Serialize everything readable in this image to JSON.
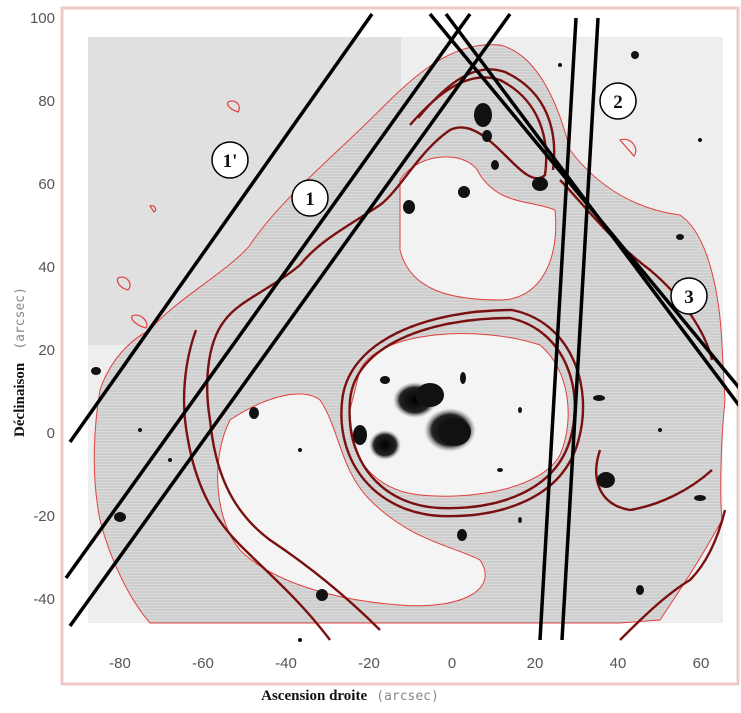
{
  "x_axis": {
    "title": "Ascension droite",
    "unit": "(arcsec)",
    "ticks": [
      "-80",
      "-60",
      "-40",
      "-20",
      "0",
      "20",
      "40",
      "60"
    ]
  },
  "y_axis": {
    "title": "Déclinaison",
    "unit": "(arcsec)",
    "ticks": [
      "100",
      "80",
      "60",
      "40",
      "20",
      "0",
      "-20",
      "-40"
    ]
  },
  "slits": [
    {
      "label": "1'"
    },
    {
      "label": "1"
    },
    {
      "label": "2"
    },
    {
      "label": "3"
    }
  ],
  "colors": {
    "frame": "#f0c8c8",
    "image_background": "#e2e2e2",
    "hatched_region": "#d6d6d6",
    "thin_contour": "#e04040",
    "thick_contour": "#7a1010",
    "slit_line": "#000000"
  }
}
